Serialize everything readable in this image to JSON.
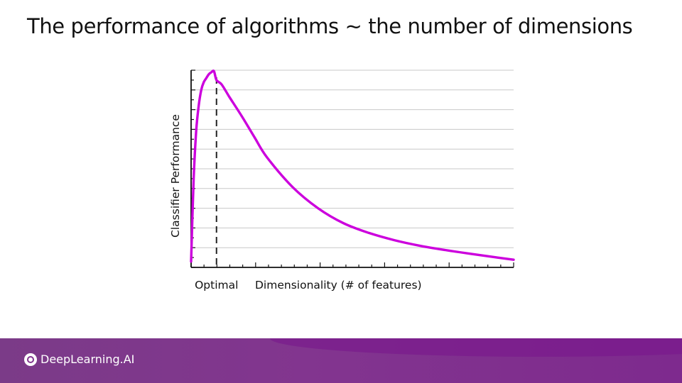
{
  "slide": {
    "title": "The performance of algorithms ~ the number of dimensions"
  },
  "footer": {
    "brand": "DeepLearning.AI",
    "logo_icon": "deeplearning-ai-logo-icon",
    "colors": {
      "band": "#82358f",
      "band_dark": "#7e2a8e"
    }
  },
  "chart_data": {
    "type": "line",
    "title": "",
    "xlabel": "Dimensionality (# of features)",
    "ylabel": "Classifier Performance",
    "x_tick_labels": [
      {
        "x": 10,
        "label": "Optimal"
      }
    ],
    "xlim": [
      0,
      127
    ],
    "ylim": [
      0,
      10
    ],
    "grid": true,
    "grid_axis": "y",
    "marker_line": {
      "x": 10,
      "style": "dashed",
      "label": "Optimal"
    },
    "series": [
      {
        "color": "#cc00dd",
        "points": [
          [
            0,
            0.3
          ],
          [
            1,
            4.5
          ],
          [
            2,
            6.9
          ],
          [
            3,
            8.2
          ],
          [
            4,
            9.0
          ],
          [
            5,
            9.4
          ],
          [
            6,
            9.6
          ],
          [
            7,
            9.8
          ],
          [
            8,
            9.9
          ],
          [
            9,
            9.95
          ],
          [
            10,
            9.5
          ],
          [
            12,
            9.28
          ],
          [
            15,
            8.66
          ],
          [
            20,
            7.66
          ],
          [
            25,
            6.59
          ],
          [
            30,
            5.56
          ],
          [
            40,
            4.07
          ],
          [
            50,
            3.0
          ],
          [
            60,
            2.24
          ],
          [
            70,
            1.75
          ],
          [
            80,
            1.38
          ],
          [
            90,
            1.1
          ],
          [
            100,
            0.88
          ],
          [
            110,
            0.69
          ],
          [
            120,
            0.51
          ],
          [
            127,
            0.39
          ]
        ]
      }
    ]
  }
}
